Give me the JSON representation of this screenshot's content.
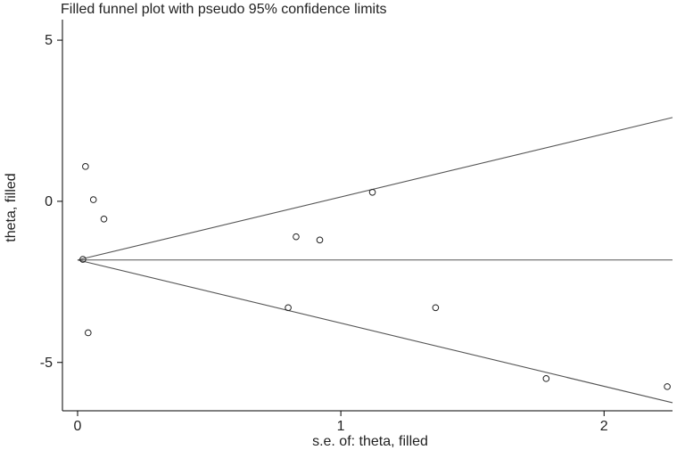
{
  "chart_data": {
    "type": "scatter",
    "title": "Filled funnel plot with pseudo 95% confidence limits",
    "xlabel": "s.e. of: theta, filled",
    "ylabel": "theta, filled",
    "xlim": [
      0,
      2.26
    ],
    "ylim": [
      -6.5,
      5.5
    ],
    "xticks": [
      {
        "value": 0,
        "label": "0"
      },
      {
        "value": 1,
        "label": "1"
      },
      {
        "value": 2,
        "label": "2"
      }
    ],
    "yticks": [
      {
        "value": 5,
        "label": "5"
      },
      {
        "value": 0,
        "label": "0"
      },
      {
        "value": -5,
        "label": "-5"
      }
    ],
    "grid": false,
    "series": [
      {
        "marker": "open-circle",
        "points": [
          {
            "x": 0.02,
            "y": -1.8
          },
          {
            "x": 0.03,
            "y": 1.08
          },
          {
            "x": 0.04,
            "y": -4.08
          },
          {
            "x": 0.06,
            "y": 0.05
          },
          {
            "x": 0.1,
            "y": -0.55
          },
          {
            "x": 0.8,
            "y": -3.3
          },
          {
            "x": 0.83,
            "y": -1.1
          },
          {
            "x": 0.92,
            "y": -1.2
          },
          {
            "x": 1.12,
            "y": 0.28
          },
          {
            "x": 1.36,
            "y": -3.3
          },
          {
            "x": 1.78,
            "y": -5.5
          },
          {
            "x": 2.24,
            "y": -5.75
          }
        ]
      }
    ],
    "lines": [
      {
        "role": "pooled-estimate",
        "points": [
          {
            "x": 0,
            "y": -1.82
          },
          {
            "x": 2.26,
            "y": -1.82
          }
        ]
      },
      {
        "role": "upper-95-limit",
        "points": [
          {
            "x": 0,
            "y": -1.82
          },
          {
            "x": 2.26,
            "y": 2.6
          }
        ]
      },
      {
        "role": "lower-95-limit",
        "points": [
          {
            "x": 0,
            "y": -1.82
          },
          {
            "x": 2.26,
            "y": -6.25
          }
        ]
      }
    ]
  }
}
